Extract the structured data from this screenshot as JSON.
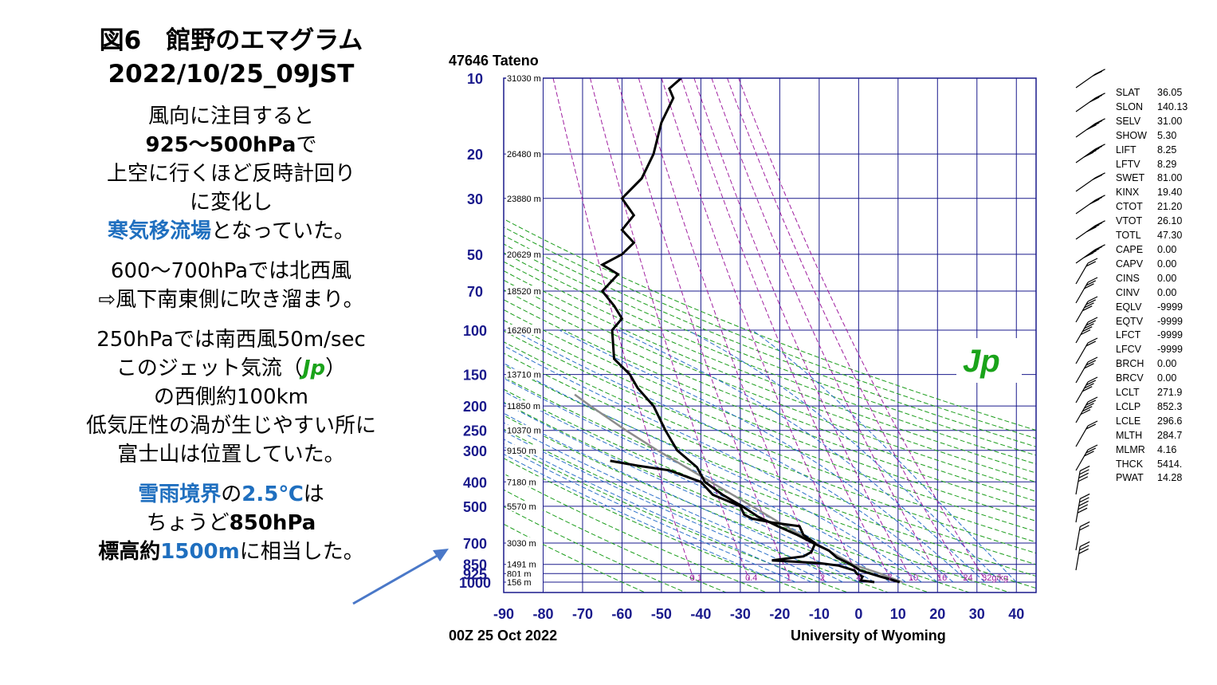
{
  "left": {
    "title1": "図6　館野のエマグラム",
    "title2": "2022/10/25_09JST",
    "p1": [
      "風向に注目すると",
      "925〜500hPa",
      "で",
      "上空に行くほど反時計回り",
      "に変化し",
      "寒気移流場",
      "となっていた。"
    ],
    "p2": [
      "600〜700hPaでは北西風",
      "⇨風下南東側に吹き溜まり。"
    ],
    "p3": [
      "250hPaでは南西風50m/sec",
      "このジェット気流（",
      "Jp",
      "）",
      "の西側約100km",
      "低気圧性の渦が生じやすい所に",
      "富士山は位置していた。"
    ],
    "p4": [
      "雪雨境界",
      "の",
      "2.5℃",
      "は",
      "ちょうど",
      "850hPa",
      "標高約",
      "1500m",
      "に相当した。"
    ]
  },
  "chart_data": {
    "type": "line",
    "title": "47646  Tateno",
    "footer_left": "00Z 25 Oct 2022",
    "footer_right": "University of Wyoming",
    "jet_label": "Jp",
    "x_ticks": [
      "-90",
      "-80",
      "-70",
      "-60",
      "-50",
      "-40",
      "-30",
      "-20",
      "-10",
      "0",
      "10",
      "20",
      "30",
      "40"
    ],
    "xlim": [
      -90,
      45
    ],
    "pressure_levels": [
      {
        "p": 10,
        "label": "10",
        "height": "31030 m"
      },
      {
        "p": 20,
        "label": "20",
        "height": "26480 m"
      },
      {
        "p": 30,
        "label": "30",
        "height": "23880 m"
      },
      {
        "p": 50,
        "label": "50",
        "height": "20629 m"
      },
      {
        "p": 70,
        "label": "70",
        "height": "18520 m"
      },
      {
        "p": 100,
        "label": "100",
        "height": "16260 m"
      },
      {
        "p": 150,
        "label": "150",
        "height": "13710 m"
      },
      {
        "p": 200,
        "label": "200",
        "height": "11850 m"
      },
      {
        "p": 250,
        "label": "250",
        "height": "10370 m"
      },
      {
        "p": 300,
        "label": "300",
        "height": "9150 m"
      },
      {
        "p": 400,
        "label": "400",
        "height": "7180 m"
      },
      {
        "p": 500,
        "label": "500",
        "height": "5570 m"
      },
      {
        "p": 700,
        "label": "700",
        "height": "3030 m"
      },
      {
        "p": 850,
        "label": "850",
        "height": "1491 m"
      },
      {
        "p": 925,
        "label": "925",
        "height": "801 m"
      },
      {
        "p": 1000,
        "label": "1000",
        "height": "156 m"
      }
    ],
    "mixing_ratio_labels": [
      "0.1",
      "0.4",
      "1",
      "2",
      "4",
      "7",
      "10",
      "16",
      "24",
      "32g/kg"
    ],
    "temperature": [
      [
        1000,
        10.4
      ],
      [
        975,
        8
      ],
      [
        950,
        5.5
      ],
      [
        925,
        3
      ],
      [
        900,
        0.5
      ],
      [
        850,
        -2
      ],
      [
        800,
        -5.5
      ],
      [
        750,
        -7.5
      ],
      [
        700,
        -11.5
      ],
      [
        650,
        -15.5
      ],
      [
        600,
        -20.5
      ],
      [
        550,
        -25.5
      ],
      [
        500,
        -29.5
      ],
      [
        450,
        -34.5
      ],
      [
        400,
        -39
      ],
      [
        350,
        -41
      ],
      [
        300,
        -46
      ],
      [
        250,
        -49
      ],
      [
        200,
        -52
      ],
      [
        170,
        -56
      ],
      [
        150,
        -58
      ],
      [
        130,
        -62
      ],
      [
        100,
        -62.5
      ],
      [
        90,
        -60
      ],
      [
        80,
        -62
      ],
      [
        70,
        -65
      ],
      [
        60,
        -61
      ],
      [
        55,
        -65
      ],
      [
        50,
        -60
      ],
      [
        45,
        -57
      ],
      [
        40,
        -60
      ],
      [
        35,
        -57
      ],
      [
        30,
        -60
      ],
      [
        25,
        -55
      ],
      [
        20,
        -52
      ],
      [
        15,
        -50
      ],
      [
        12,
        -47
      ],
      [
        11,
        -48
      ],
      [
        10,
        -45
      ]
    ],
    "dewpoint": [
      [
        1000,
        4
      ],
      [
        985,
        0.5
      ],
      [
        950,
        1
      ],
      [
        925,
        -0.5
      ],
      [
        900,
        -1
      ],
      [
        860,
        -5
      ],
      [
        840,
        -10
      ],
      [
        820,
        -22
      ],
      [
        790,
        -14
      ],
      [
        760,
        -12
      ],
      [
        700,
        -11
      ],
      [
        650,
        -14
      ],
      [
        600,
        -15
      ],
      [
        580,
        -22
      ],
      [
        560,
        -27
      ],
      [
        540,
        -29
      ],
      [
        500,
        -30
      ],
      [
        450,
        -37
      ],
      [
        400,
        -40
      ],
      [
        360,
        -48
      ],
      [
        345,
        -56
      ],
      [
        330,
        -63
      ]
    ],
    "parcel": [
      [
        1000,
        11
      ],
      [
        925,
        5.5
      ],
      [
        852,
        -1.4
      ],
      [
        800,
        -4.5
      ],
      [
        700,
        -11
      ],
      [
        600,
        -18.5
      ],
      [
        500,
        -27
      ],
      [
        400,
        -37.5
      ],
      [
        300,
        -51
      ],
      [
        250,
        -59
      ],
      [
        200,
        -68
      ],
      [
        180,
        -72
      ]
    ],
    "stats": [
      [
        "SLAT",
        "36.05"
      ],
      [
        "SLON",
        "140.13"
      ],
      [
        "SELV",
        "31.00"
      ],
      [
        "SHOW",
        "5.30"
      ],
      [
        "LIFT",
        "8.25"
      ],
      [
        "LFTV",
        "8.29"
      ],
      [
        "SWET",
        "81.00"
      ],
      [
        "KINX",
        "19.40"
      ],
      [
        "CTOT",
        "21.20"
      ],
      [
        "VTOT",
        "26.10"
      ],
      [
        "TOTL",
        "47.30"
      ],
      [
        "CAPE",
        "0.00"
      ],
      [
        "CAPV",
        "0.00"
      ],
      [
        "CINS",
        "0.00"
      ],
      [
        "CINV",
        "0.00"
      ],
      [
        "EQLV",
        "-9999"
      ],
      [
        "EQTV",
        "-9999"
      ],
      [
        "LFCT",
        "-9999"
      ],
      [
        "LFCV",
        "-9999"
      ],
      [
        "BRCH",
        "0.00"
      ],
      [
        "BRCV",
        "0.00"
      ],
      [
        "LCLT",
        "271.9"
      ],
      [
        "LCLP",
        "852.3"
      ],
      [
        "LCLE",
        "296.6"
      ],
      [
        "MLTH",
        "284.7"
      ],
      [
        "MLMR",
        "4.16"
      ],
      [
        "THCK",
        "5414."
      ],
      [
        "PWAT",
        "14.28"
      ]
    ],
    "colors": {
      "grid": "#1a1a8c",
      "dry_adiabat": "#1e9e1e",
      "moist_adiabat": "#2a6fc9",
      "mixing_ratio": "#a020a0",
      "profile": "#000000",
      "parcel": "#8c8c8c",
      "jet_label": "#1aa31a",
      "arrow": "#4a78c8"
    }
  }
}
